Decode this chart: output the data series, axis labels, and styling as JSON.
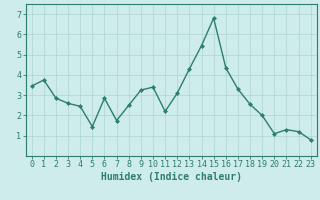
{
  "x": [
    0,
    1,
    2,
    3,
    4,
    5,
    6,
    7,
    8,
    9,
    10,
    11,
    12,
    13,
    14,
    15,
    16,
    17,
    18,
    19,
    20,
    21,
    22,
    23
  ],
  "y": [
    3.45,
    3.75,
    2.85,
    2.6,
    2.45,
    1.45,
    2.85,
    1.75,
    2.5,
    3.25,
    3.4,
    2.2,
    3.1,
    4.3,
    5.45,
    6.8,
    4.35,
    3.3,
    2.55,
    2.0,
    1.1,
    1.3,
    1.2,
    0.8
  ],
  "line_color": "#2e7d6e",
  "marker": "D",
  "marker_size": 2.0,
  "line_width": 1.0,
  "bg_color": "#ceecea",
  "grid_color": "#aed4d0",
  "xlabel": "Humidex (Indice chaleur)",
  "ylim": [
    0,
    7.5
  ],
  "xlim": [
    -0.5,
    23.5
  ],
  "yticks": [
    1,
    2,
    3,
    4,
    5,
    6,
    7
  ],
  "xticks": [
    0,
    1,
    2,
    3,
    4,
    5,
    6,
    7,
    8,
    9,
    10,
    11,
    12,
    13,
    14,
    15,
    16,
    17,
    18,
    19,
    20,
    21,
    22,
    23
  ],
  "xlabel_fontsize": 7,
  "tick_fontsize": 6,
  "tick_color": "#2e7d6e",
  "axis_color": "#2e7d6e"
}
